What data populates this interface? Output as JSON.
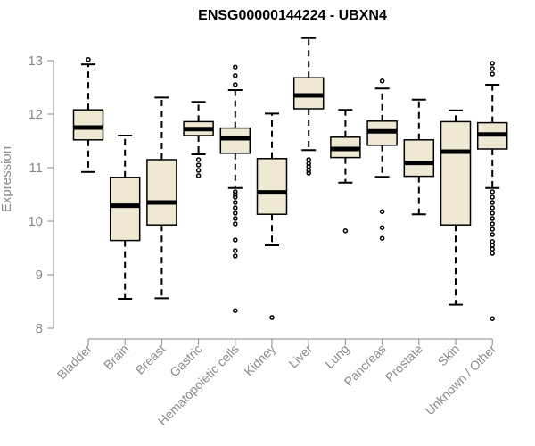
{
  "chart_data": {
    "type": "boxplot",
    "title": "ENSG00000144224 - UBXN4",
    "ylabel": "Expression",
    "ylim": [
      8,
      13
    ],
    "yticks": [
      "8",
      "9",
      "10",
      "11",
      "12",
      "13"
    ],
    "box_fill": "#efe9d3",
    "categories": [
      "Bladder",
      "Brain",
      "Breast",
      "Gastric",
      "Hematopoietic cells",
      "Kidney",
      "Liver",
      "Lung",
      "Pancreas",
      "Prostate",
      "Skin",
      "Unknown / Other"
    ],
    "boxes": [
      {
        "whisker_low": 10.92,
        "q1": 11.52,
        "median": 11.75,
        "q3": 12.08,
        "whisker_high": 12.93,
        "outliers": [
          13.02
        ]
      },
      {
        "whisker_low": 8.55,
        "q1": 9.64,
        "median": 10.29,
        "q3": 10.82,
        "whisker_high": 11.6,
        "outliers": []
      },
      {
        "whisker_low": 8.56,
        "q1": 9.93,
        "median": 10.35,
        "q3": 11.15,
        "whisker_high": 12.31,
        "outliers": []
      },
      {
        "whisker_low": 11.25,
        "q1": 11.6,
        "median": 11.72,
        "q3": 11.86,
        "whisker_high": 12.23,
        "outliers": [
          11.15,
          11.05,
          10.95,
          10.85
        ]
      },
      {
        "whisker_low": 10.62,
        "q1": 11.27,
        "median": 11.55,
        "q3": 11.74,
        "whisker_high": 12.45,
        "outliers": [
          12.88,
          12.72,
          12.55,
          10.55,
          10.5,
          10.45,
          10.35,
          10.25,
          10.15,
          10.05,
          9.95,
          9.65,
          9.45,
          9.35,
          8.33
        ]
      },
      {
        "whisker_low": 9.55,
        "q1": 10.13,
        "median": 10.54,
        "q3": 11.17,
        "whisker_high": 12.01,
        "outliers": [
          8.2
        ]
      },
      {
        "whisker_low": 11.33,
        "q1": 12.1,
        "median": 12.35,
        "q3": 12.68,
        "whisker_high": 13.42,
        "outliers": [
          11.15,
          11.08,
          11.02,
          10.95,
          10.9
        ]
      },
      {
        "whisker_low": 10.72,
        "q1": 11.19,
        "median": 11.35,
        "q3": 11.57,
        "whisker_high": 12.08,
        "outliers": [
          9.82
        ]
      },
      {
        "whisker_low": 10.83,
        "q1": 11.42,
        "median": 11.68,
        "q3": 11.87,
        "whisker_high": 12.48,
        "outliers": [
          12.62,
          10.18,
          9.88,
          9.68
        ]
      },
      {
        "whisker_low": 10.13,
        "q1": 10.84,
        "median": 11.09,
        "q3": 11.52,
        "whisker_high": 12.27,
        "outliers": []
      },
      {
        "whisker_low": 8.44,
        "q1": 9.93,
        "median": 11.3,
        "q3": 11.86,
        "whisker_high": 12.07,
        "outliers": []
      },
      {
        "whisker_low": 10.62,
        "q1": 11.35,
        "median": 11.62,
        "q3": 11.84,
        "whisker_high": 12.55,
        "outliers": [
          12.95,
          12.85,
          12.75,
          10.55,
          10.45,
          10.35,
          10.25,
          10.15,
          10.05,
          9.95,
          9.85,
          9.75,
          9.62,
          9.55,
          9.48,
          9.4,
          8.18
        ]
      }
    ]
  }
}
